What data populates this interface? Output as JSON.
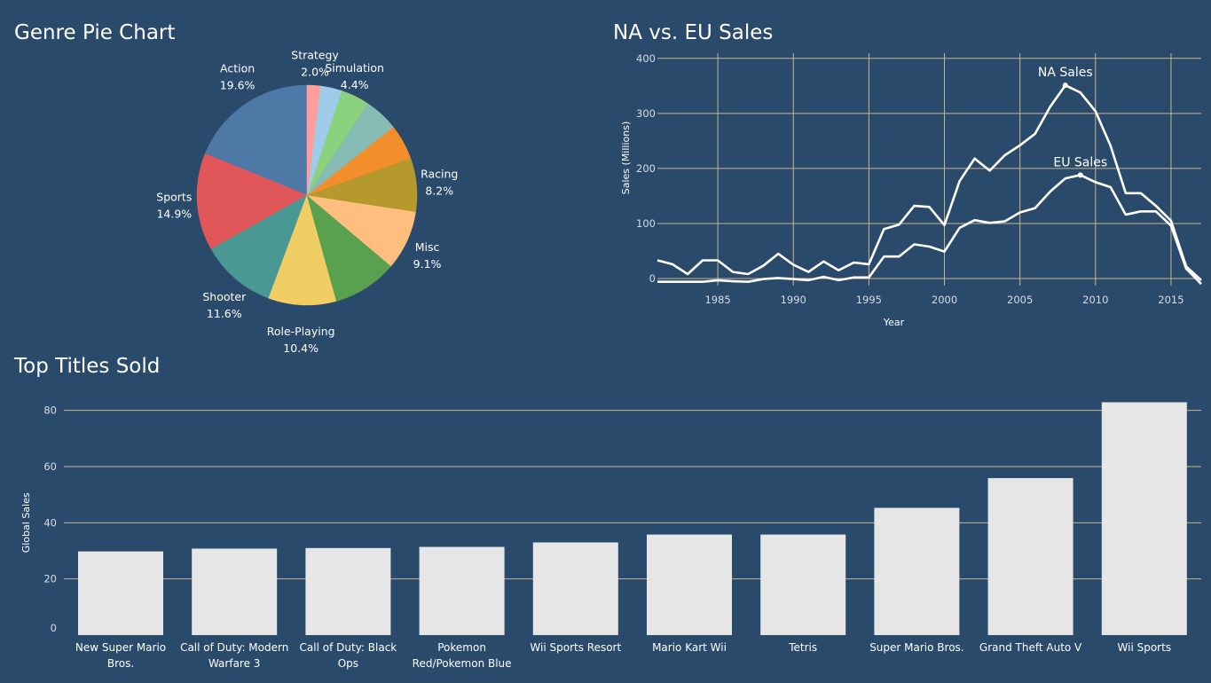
{
  "panels": {
    "pie_title": "Genre Pie Chart",
    "line_title": "NA vs. EU Sales",
    "bar_title": "Top Titles Sold"
  },
  "colors": {
    "background": "#2a4a6b",
    "grid": "#c9b48e",
    "line": "#ffffff",
    "bar": "#e6e6e6"
  },
  "chart_data": [
    {
      "type": "pie",
      "title": "Genre Pie Chart",
      "slices": [
        {
          "label": "Action",
          "pct_label": "19.6%",
          "value": 19.6,
          "color": "#4e79a7"
        },
        {
          "label": "Sports",
          "pct_label": "14.9%",
          "value": 14.9,
          "color": "#e15759"
        },
        {
          "label": "Shooter",
          "pct_label": "11.6%",
          "value": 11.6,
          "color": "#499894"
        },
        {
          "label": "Role-Playing",
          "pct_label": "10.4%",
          "value": 10.4,
          "color": "#f1ce63"
        },
        {
          "label": "",
          "pct_label": "",
          "value": 9.9,
          "color": "#59a14f"
        },
        {
          "label": "Misc",
          "pct_label": "9.1%",
          "value": 9.1,
          "color": "#ffbe7d"
        },
        {
          "label": "Racing",
          "pct_label": "8.2%",
          "value": 8.2,
          "color": "#b6992d"
        },
        {
          "label": "",
          "pct_label": "",
          "value": 5.4,
          "color": "#f28e2b"
        },
        {
          "label": "",
          "pct_label": "",
          "value": 5.2,
          "color": "#86bcb6"
        },
        {
          "label": "Simulation",
          "pct_label": "4.4%",
          "value": 4.4,
          "color": "#8cd17d"
        },
        {
          "label": "",
          "pct_label": "",
          "value": 3.3,
          "color": "#a0cbe8"
        },
        {
          "label": "Strategy",
          "pct_label": "2.0%",
          "value": 2.0,
          "color": "#ff9d9a"
        }
      ]
    },
    {
      "type": "line",
      "title": "NA vs. EU Sales",
      "xlabel": "Year",
      "ylabel": "Sales (Millions)",
      "xlim": [
        1981,
        2017
      ],
      "ylim": [
        0,
        400
      ],
      "xticks": [
        1985,
        1990,
        1995,
        2000,
        2005,
        2010,
        2015
      ],
      "yticks": [
        0,
        100,
        200,
        300,
        400
      ],
      "grid": true,
      "x": [
        1981,
        1982,
        1983,
        1984,
        1985,
        1986,
        1987,
        1988,
        1989,
        1990,
        1991,
        1992,
        1993,
        1994,
        1995,
        1996,
        1997,
        1998,
        1999,
        2000,
        2001,
        2002,
        2003,
        2004,
        2005,
        2006,
        2007,
        2008,
        2009,
        2010,
        2011,
        2012,
        2013,
        2014,
        2015,
        2016,
        2017
      ],
      "series": [
        {
          "name": "NA Sales",
          "label_x": 2008,
          "values": [
            33,
            26,
            8,
            33,
            33,
            12,
            8,
            23,
            45,
            25,
            12,
            31,
            15,
            29,
            26,
            90,
            98,
            132,
            130,
            97,
            177,
            218,
            196,
            224,
            242,
            263,
            312,
            351,
            338,
            304,
            241,
            155,
            155,
            132,
            105,
            22,
            -3
          ]
        },
        {
          "name": "EU Sales",
          "label_x": 2009,
          "values": [
            -6,
            -6,
            -6,
            -6,
            -3,
            -5,
            -6,
            -1,
            1,
            -1,
            -3,
            3,
            -3,
            2,
            2,
            40,
            40,
            62,
            58,
            49,
            92,
            106,
            101,
            104,
            120,
            128,
            158,
            182,
            188,
            175,
            166,
            116,
            122,
            122,
            96,
            18,
            -10
          ]
        }
      ]
    },
    {
      "type": "bar",
      "title": "Top Titles Sold",
      "xlabel": "",
      "ylabel": "Global Sales",
      "ylim": [
        0,
        84
      ],
      "yticks": [
        0,
        20,
        40,
        60,
        80
      ],
      "grid": true,
      "categories": [
        [
          "New Super Mario",
          "Bros."
        ],
        [
          "Call of Duty: Modern",
          "Warfare 3"
        ],
        [
          "Call of Duty: Black",
          "Ops"
        ],
        [
          "Pokemon",
          "Red/Pokemon Blue"
        ],
        [
          "Wii Sports Resort"
        ],
        [
          "Mario Kart Wii"
        ],
        [
          "Tetris"
        ],
        [
          "Super Mario Bros."
        ],
        [
          "Grand Theft Auto V"
        ],
        [
          "Wii Sports"
        ]
      ],
      "values": [
        29.8,
        30.8,
        31.0,
        31.4,
        33.0,
        35.8,
        35.8,
        45.3,
        55.9,
        82.9
      ]
    }
  ]
}
